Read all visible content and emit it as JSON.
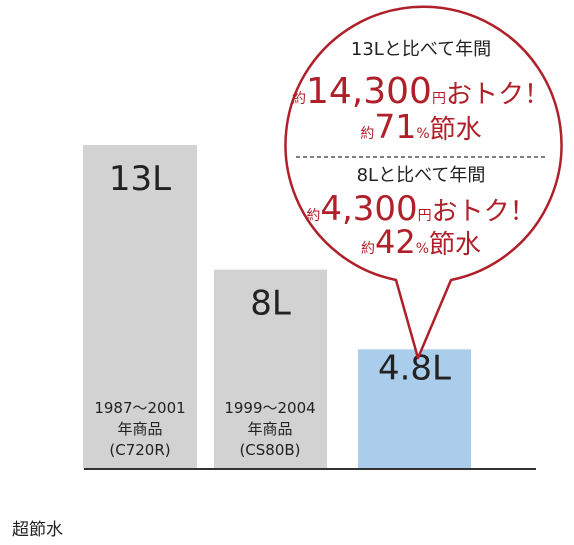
{
  "chart_data": {
    "type": "bar",
    "categories": [
      "1987〜2001年商品(C720R)",
      "1999〜2004年商品(CS80B)",
      "超節水"
    ],
    "values": [
      13,
      8,
      4.8
    ],
    "unit": "L",
    "ylim": [
      0,
      13
    ],
    "grid": false,
    "bars": [
      {
        "value_label": "13L",
        "sub_lines": [
          "1987〜2001",
          "年商品",
          "(C720R)"
        ],
        "color": "#d2d2d2"
      },
      {
        "value_label": "8L",
        "sub_lines": [
          "1999〜2004",
          "年商品",
          "(CS80B)"
        ],
        "color": "#d2d2d2"
      },
      {
        "value_label": "4.8L",
        "sub_lines": [],
        "color": "#a9cdea"
      }
    ],
    "annotation": {
      "block1": {
        "heading": "13Lと比べて年間",
        "prefix1": "約",
        "amount": "14,300",
        "yen": "円",
        "suffix1": "おトク！",
        "prefix2": "約",
        "percent": "71",
        "pct_sign": "%",
        "suffix2": "節水"
      },
      "block2": {
        "heading": "8Lと比べて年間",
        "prefix1": "約",
        "amount": "4,300",
        "yen": "円",
        "suffix1": "おトク！",
        "prefix2": "約",
        "percent": "42",
        "pct_sign": "%",
        "suffix2": "節水"
      }
    }
  },
  "caption": "超節水",
  "colors": {
    "accent": "#b0202a",
    "outline": "#b0202a",
    "bar_gray": "#d2d2d2",
    "bar_blue": "#a9cdea",
    "axis": "#333333"
  }
}
